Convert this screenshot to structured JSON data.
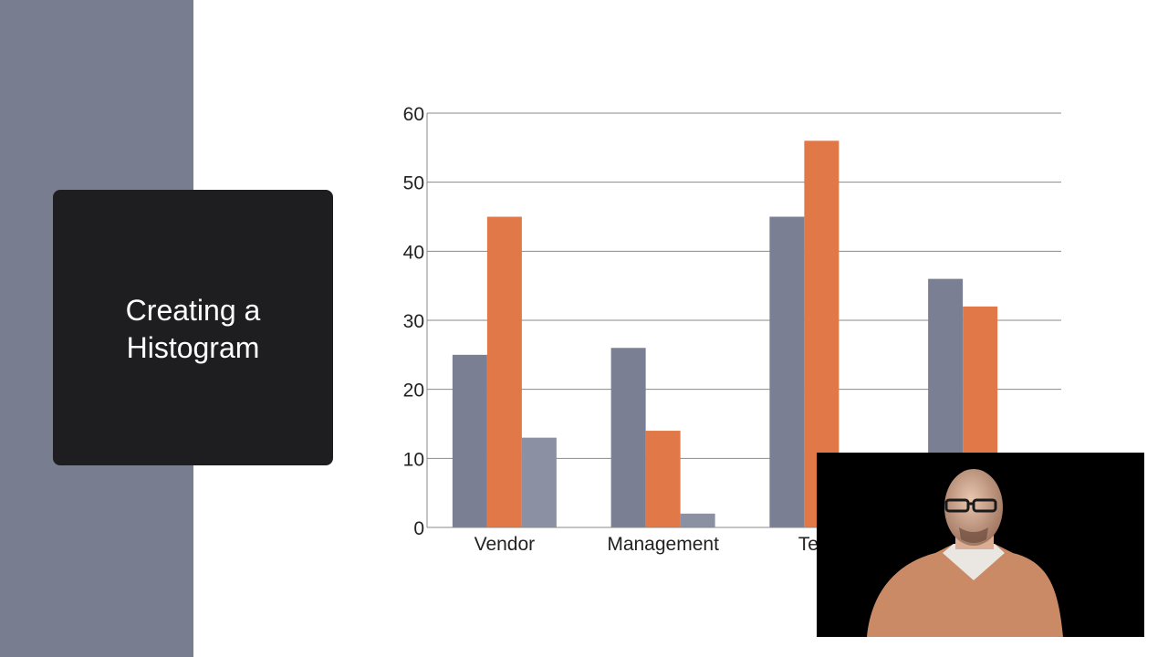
{
  "slide": {
    "title_line1": "Creating a",
    "title_line2": "Histogram"
  },
  "colors": {
    "sidebar": "#787d90",
    "title_card": "#1e1d1f",
    "series_gray": "#7a7f93",
    "series_orange": "#e07848",
    "series_gray_light": "#8b90a3"
  },
  "chart_data": {
    "type": "bar",
    "categories": [
      "Vendor",
      "Management",
      "Team",
      ""
    ],
    "series": [
      {
        "values": [
          25,
          26,
          45,
          36
        ]
      },
      {
        "values": [
          45,
          14,
          56,
          32
        ]
      },
      {
        "values": [
          13,
          2,
          null,
          null
        ]
      }
    ],
    "yticks": [
      "0",
      "10",
      "20",
      "30",
      "40",
      "50",
      "60"
    ],
    "ylim": [
      0,
      60
    ],
    "grid": true,
    "legend": "none"
  },
  "webcam": {
    "icon": "presenter-video-icon"
  }
}
